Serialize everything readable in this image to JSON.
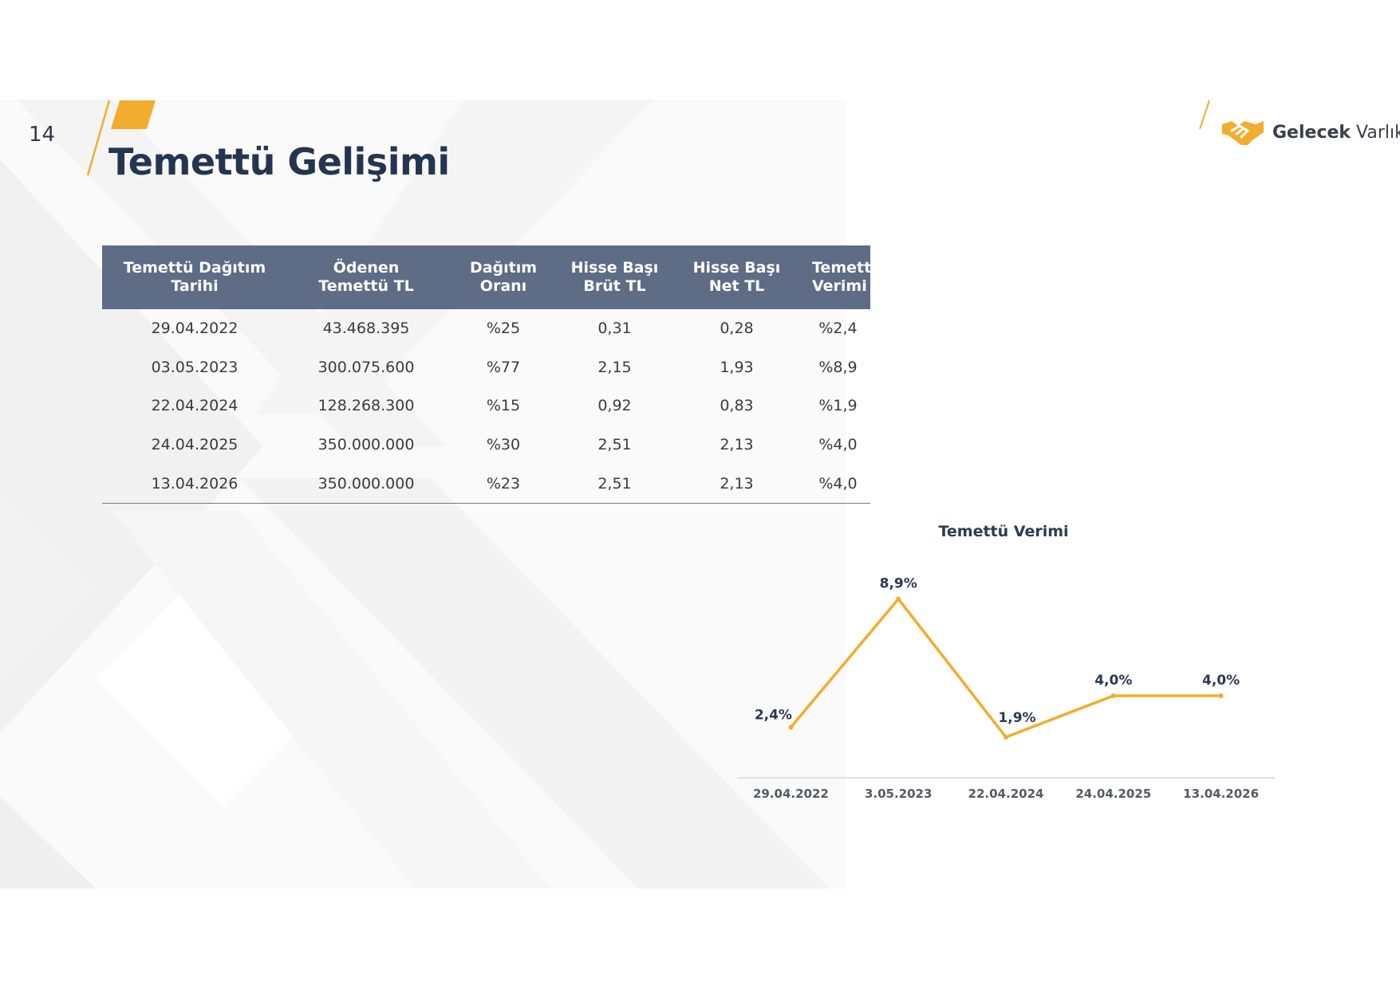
{
  "page_number": "14",
  "title": "Temettü Gelişimi",
  "brand": {
    "name_bold": "Gelecek",
    "name_light": "Varlık"
  },
  "colors": {
    "accent": "#f2ad2e",
    "title": "#243551",
    "table_header": "#5e6c85",
    "line": "#f0ae2d"
  },
  "table": {
    "headers": [
      "Temettü Dağıtım\nTarihi",
      "Ödenen\nTemettü TL",
      "Dağıtım\nOranı",
      "Hisse Başı\nBrüt TL",
      "Hisse Başı\nNet TL",
      "Temettü\nVerimi"
    ],
    "rows": [
      [
        "29.04.2022",
        "43.468.395",
        "%25",
        "0,31",
        "0,28",
        "%2,4"
      ],
      [
        "03.05.2023",
        "300.075.600",
        "%77",
        "2,15",
        "1,93",
        "%8,9"
      ],
      [
        "22.04.2024",
        "128.268.300",
        "%15",
        "0,92",
        "0,83",
        "%1,9"
      ],
      [
        "24.04.2025",
        "350.000.000",
        "%30",
        "2,51",
        "2,13",
        "%4,0"
      ],
      [
        "13.04.2026",
        "350.000.000",
        "%23",
        "2,51",
        "2,13",
        "%4,0"
      ]
    ]
  },
  "chart_data": {
    "type": "line",
    "title": "Temettü Verimi",
    "categories": [
      "29.04.2022",
      "3.05.2023",
      "22.04.2024",
      "24.04.2025",
      "13.04.2026"
    ],
    "series": [
      {
        "values": [
          2.4,
          8.9,
          1.9,
          4.0,
          4.0
        ],
        "color": "#f0ae2d"
      }
    ],
    "data_labels": [
      "2,4%",
      "8,9%",
      "1,9%",
      "4,0%",
      "4,0%"
    ],
    "ylim": [
      0,
      10.5
    ],
    "grid": false,
    "legend": "none"
  }
}
